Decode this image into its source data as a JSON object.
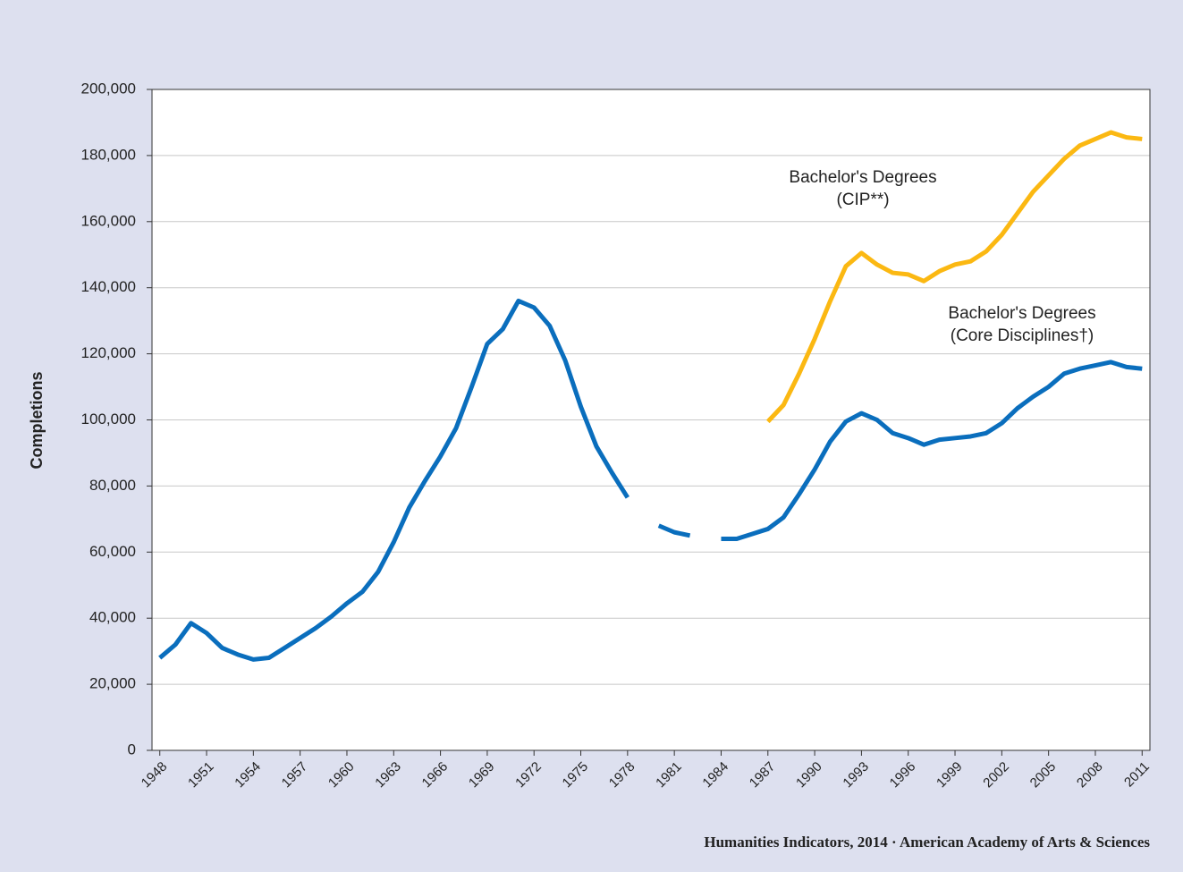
{
  "chart_data": {
    "type": "line",
    "y_label": "Completions",
    "source": "Humanities Indicators, 2014 · American Academy of Arts & Sciences",
    "annotations": [
      [
        "Bachelor's Degrees",
        "(CIP**)"
      ],
      [
        "Bachelor's Degrees",
        "(Core Disciplines†)"
      ]
    ],
    "x": [
      1948,
      1949,
      1950,
      1951,
      1952,
      1953,
      1954,
      1955,
      1956,
      1957,
      1958,
      1959,
      1960,
      1961,
      1962,
      1963,
      1964,
      1965,
      1966,
      1967,
      1968,
      1969,
      1970,
      1971,
      1972,
      1973,
      1974,
      1975,
      1976,
      1977,
      1978,
      1979,
      1980,
      1981,
      1982,
      1983,
      1984,
      1985,
      1986,
      1987,
      1988,
      1989,
      1990,
      1991,
      1992,
      1993,
      1994,
      1995,
      1996,
      1997,
      1998,
      1999,
      2000,
      2001,
      2002,
      2003,
      2004,
      2005,
      2006,
      2007,
      2008,
      2009,
      2010,
      2011
    ],
    "series": [
      {
        "color": "#fbb812",
        "values": [
          null,
          null,
          null,
          null,
          null,
          null,
          null,
          null,
          null,
          null,
          null,
          null,
          null,
          null,
          null,
          null,
          null,
          null,
          null,
          null,
          null,
          null,
          null,
          null,
          null,
          null,
          null,
          null,
          null,
          null,
          null,
          null,
          null,
          null,
          null,
          null,
          null,
          null,
          null,
          99500,
          104500,
          114000,
          124500,
          136000,
          146500,
          150500,
          147000,
          144500,
          144000,
          142000,
          145000,
          147000,
          148000,
          151000,
          156000,
          162500,
          169000,
          174000,
          179000,
          183000,
          185000,
          187000,
          185500,
          185000
        ]
      },
      {
        "color": "#0a6ebd",
        "values": [
          28000,
          32000,
          38500,
          35500,
          31000,
          29000,
          27500,
          28000,
          31000,
          34000,
          37000,
          40500,
          44500,
          48000,
          54000,
          63000,
          73500,
          81500,
          89000,
          97500,
          110000,
          123000,
          127500,
          136000,
          134000,
          128500,
          118000,
          104000,
          92000,
          84000,
          76500,
          null,
          68000,
          66000,
          65000,
          null,
          64000,
          64000,
          65500,
          67000,
          70500,
          77500,
          85000,
          93500,
          99500,
          102000,
          100000,
          96000,
          94500,
          92500,
          94000,
          94500,
          95000,
          96000,
          99000,
          103500,
          107000,
          110000,
          114000,
          115500,
          116500,
          117500,
          116000,
          115500
        ]
      }
    ],
    "xlim": [
      1947.5,
      2011.5
    ],
    "xticks": [
      1948,
      1951,
      1954,
      1957,
      1960,
      1963,
      1966,
      1969,
      1972,
      1975,
      1978,
      1981,
      1984,
      1987,
      1990,
      1993,
      1996,
      1999,
      2002,
      2005,
      2008,
      2011
    ],
    "ylim": [
      0,
      200000
    ],
    "yticks": [
      0,
      {
        "value": 20000,
        "label": "20,000"
      },
      {
        "value": 40000,
        "label": "40,000"
      },
      {
        "value": 60000,
        "label": "60,000"
      },
      {
        "value": 80000,
        "label": "80,000"
      },
      {
        "value": 100000,
        "label": "100,000"
      },
      {
        "value": 120000,
        "label": "120,000"
      },
      {
        "value": 140000,
        "label": "140,000"
      },
      {
        "value": 160000,
        "label": "160,000"
      },
      {
        "value": 180000,
        "label": "180,000"
      },
      {
        "value": 200000,
        "label": "200,000"
      }
    ],
    "grid": true
  }
}
